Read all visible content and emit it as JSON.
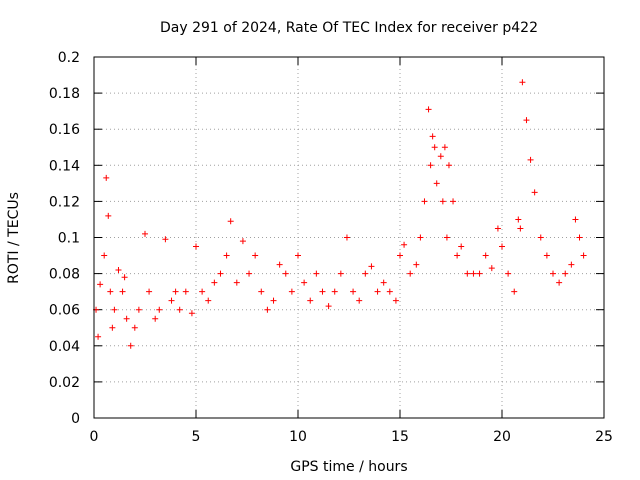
{
  "chart_data": {
    "type": "scatter",
    "title": "Day 291 of 2024, Rate Of TEC Index for receiver p422",
    "xlabel": "GPS time / hours",
    "ylabel": "ROTI / TECUs",
    "xlim": [
      0,
      25
    ],
    "ylim": [
      0,
      0.2
    ],
    "xticks": [
      "0",
      "5",
      "10",
      "15",
      "20",
      "25"
    ],
    "yticks": [
      "0",
      "0.02",
      "0.04",
      "0.06",
      "0.08",
      "0.1",
      "0.12",
      "0.14",
      "0.16",
      "0.18",
      "0.2"
    ],
    "grid": true,
    "marker": "plus",
    "color": "#ff0000",
    "series": [
      {
        "x": [
          0.1,
          0.2,
          0.3,
          0.5,
          0.6,
          0.7,
          0.8,
          0.9,
          1.0,
          1.2,
          1.4,
          1.5,
          1.6,
          1.8,
          2.0,
          2.2,
          2.5,
          2.7,
          3.0,
          3.2,
          3.5,
          3.8,
          4.0,
          4.2,
          4.5,
          4.8,
          5.0,
          5.3,
          5.6,
          5.9,
          6.2,
          6.5,
          6.7,
          7.0,
          7.3,
          7.6,
          7.9,
          8.2,
          8.5,
          8.8,
          9.1,
          9.4,
          9.7,
          10.0,
          10.3,
          10.6,
          10.9,
          11.2,
          11.5,
          11.8,
          12.1,
          12.4,
          12.7,
          13.0,
          13.3,
          13.6,
          13.9,
          14.2,
          14.5,
          14.8,
          15.0,
          15.2,
          15.5,
          15.8,
          16.0,
          16.2,
          16.4,
          16.5,
          16.6,
          16.7,
          16.8,
          17.0,
          17.1,
          17.2,
          17.3,
          17.4,
          17.6,
          17.8,
          18.0,
          18.3,
          18.6,
          18.9,
          19.2,
          19.5,
          19.8,
          20.0,
          20.3,
          20.6,
          20.8,
          20.9,
          21.0,
          21.2,
          21.4,
          21.6,
          21.9,
          22.2,
          22.5,
          22.8,
          23.1,
          23.4,
          23.6,
          23.8,
          24.0
        ],
        "y": [
          0.06,
          0.045,
          0.074,
          0.09,
          0.133,
          0.112,
          0.07,
          0.05,
          0.06,
          0.082,
          0.07,
          0.078,
          0.055,
          0.04,
          0.05,
          0.06,
          0.102,
          0.07,
          0.055,
          0.06,
          0.099,
          0.065,
          0.07,
          0.06,
          0.07,
          0.058,
          0.095,
          0.07,
          0.065,
          0.075,
          0.08,
          0.09,
          0.109,
          0.075,
          0.098,
          0.08,
          0.09,
          0.07,
          0.06,
          0.065,
          0.085,
          0.08,
          0.07,
          0.09,
          0.075,
          0.065,
          0.08,
          0.07,
          0.062,
          0.07,
          0.08,
          0.1,
          0.07,
          0.065,
          0.08,
          0.084,
          0.07,
          0.075,
          0.07,
          0.065,
          0.09,
          0.096,
          0.08,
          0.085,
          0.1,
          0.12,
          0.171,
          0.14,
          0.156,
          0.15,
          0.13,
          0.145,
          0.12,
          0.15,
          0.1,
          0.14,
          0.12,
          0.09,
          0.095,
          0.08,
          0.08,
          0.08,
          0.09,
          0.083,
          0.105,
          0.095,
          0.08,
          0.07,
          0.11,
          0.105,
          0.186,
          0.165,
          0.143,
          0.125,
          0.1,
          0.09,
          0.08,
          0.075,
          0.08,
          0.085,
          0.11,
          0.1,
          0.09
        ]
      }
    ]
  }
}
